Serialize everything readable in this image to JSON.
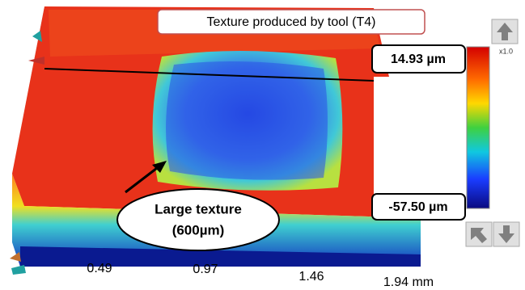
{
  "title": "Texture produced by tool (T4)",
  "scale": {
    "max": "14.93 µm",
    "min": "-57.50 µm",
    "zoom": "x1.0"
  },
  "annotation": {
    "lines": [
      "Large texture",
      "(600µm)"
    ]
  },
  "axis_labels": [
    "0.49",
    "0.97",
    "1.46",
    "1.94 mm"
  ]
}
